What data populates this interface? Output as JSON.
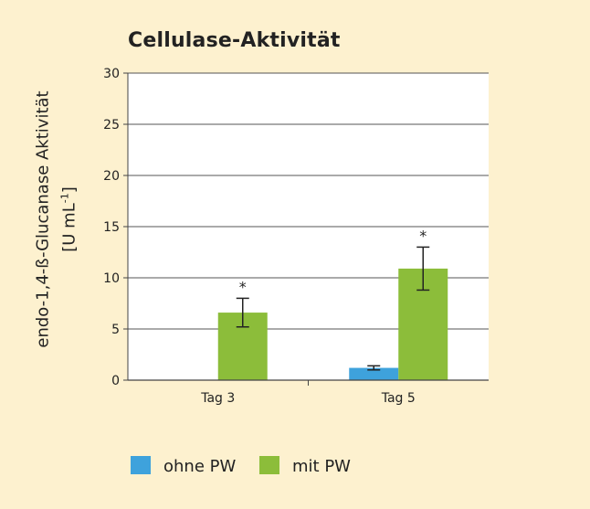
{
  "chart_data": {
    "type": "bar",
    "title": "Cellulase-Aktivität",
    "ylabel_line1": "endo-1,4-ß-Glucanase Aktivität",
    "ylabel_line2": "[U mL",
    "ylabel_sup": "-1",
    "ylabel_close": "]",
    "ylim": [
      0,
      30
    ],
    "yticks": [
      0,
      5,
      10,
      15,
      20,
      25,
      30
    ],
    "categories": [
      "Tag 3",
      "Tag 5"
    ],
    "series": [
      {
        "name": "ohne PW",
        "color": "#3ea2dc",
        "values": [
          0,
          1.2
        ],
        "errors": [
          0,
          0.2
        ]
      },
      {
        "name": "mit PW",
        "color": "#8cbd3a",
        "values": [
          6.6,
          10.9
        ],
        "errors": [
          1.4,
          2.1
        ]
      }
    ],
    "annotations": [
      {
        "category": 0,
        "series": 1,
        "text": "*"
      },
      {
        "category": 1,
        "series": 1,
        "text": "*"
      }
    ],
    "grid": true,
    "legend_position": "bottom"
  }
}
